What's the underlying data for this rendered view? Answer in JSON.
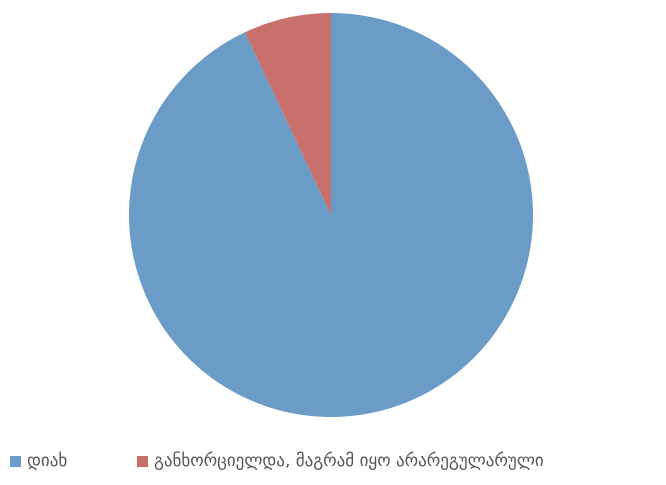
{
  "chart_data": {
    "type": "pie",
    "title": "",
    "slices": [
      {
        "label": "დიახ",
        "value": 93,
        "color": "#6b9cc8"
      },
      {
        "label": "განხორციელდა, მაგრამ იყო არარეგულარული",
        "value": 7,
        "color": "#c9706c"
      }
    ],
    "legend_position": "bottom"
  }
}
